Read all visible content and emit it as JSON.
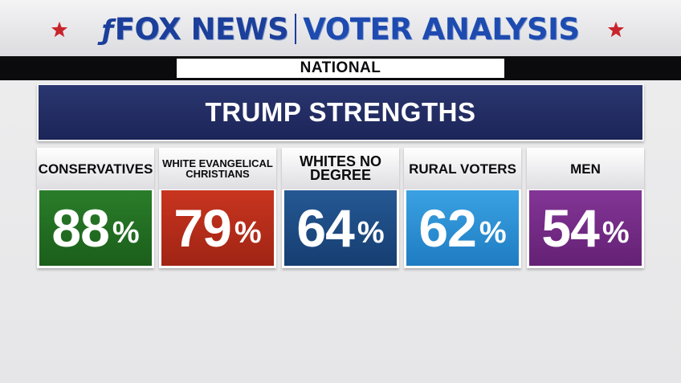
{
  "header": {
    "brand": "FOX NEWS",
    "title": "VOTER ANALYSIS"
  },
  "region": {
    "label": "NATIONAL"
  },
  "banner": {
    "title": "TRUMP STRENGTHS"
  },
  "colors": {
    "brand_blue": "#1b3f9a",
    "banner_navy": "#212c63",
    "star_red": "#c8242b"
  },
  "cards": [
    {
      "label": "CONSERVATIVES",
      "value": "88",
      "unit": "%",
      "color": "#1f6b1f"
    },
    {
      "label": "WHITE EVANGELICAL CHRISTIANS",
      "value": "79",
      "unit": "%",
      "color": "#b82d1a"
    },
    {
      "label": "WHITES NO DEGREE",
      "value": "64",
      "unit": "%",
      "color": "#1d4b86"
    },
    {
      "label": "RURAL VOTERS",
      "value": "62",
      "unit": "%",
      "color": "#2b8fd4"
    },
    {
      "label": "MEN",
      "value": "54",
      "unit": "%",
      "color": "#742a86"
    }
  ]
}
